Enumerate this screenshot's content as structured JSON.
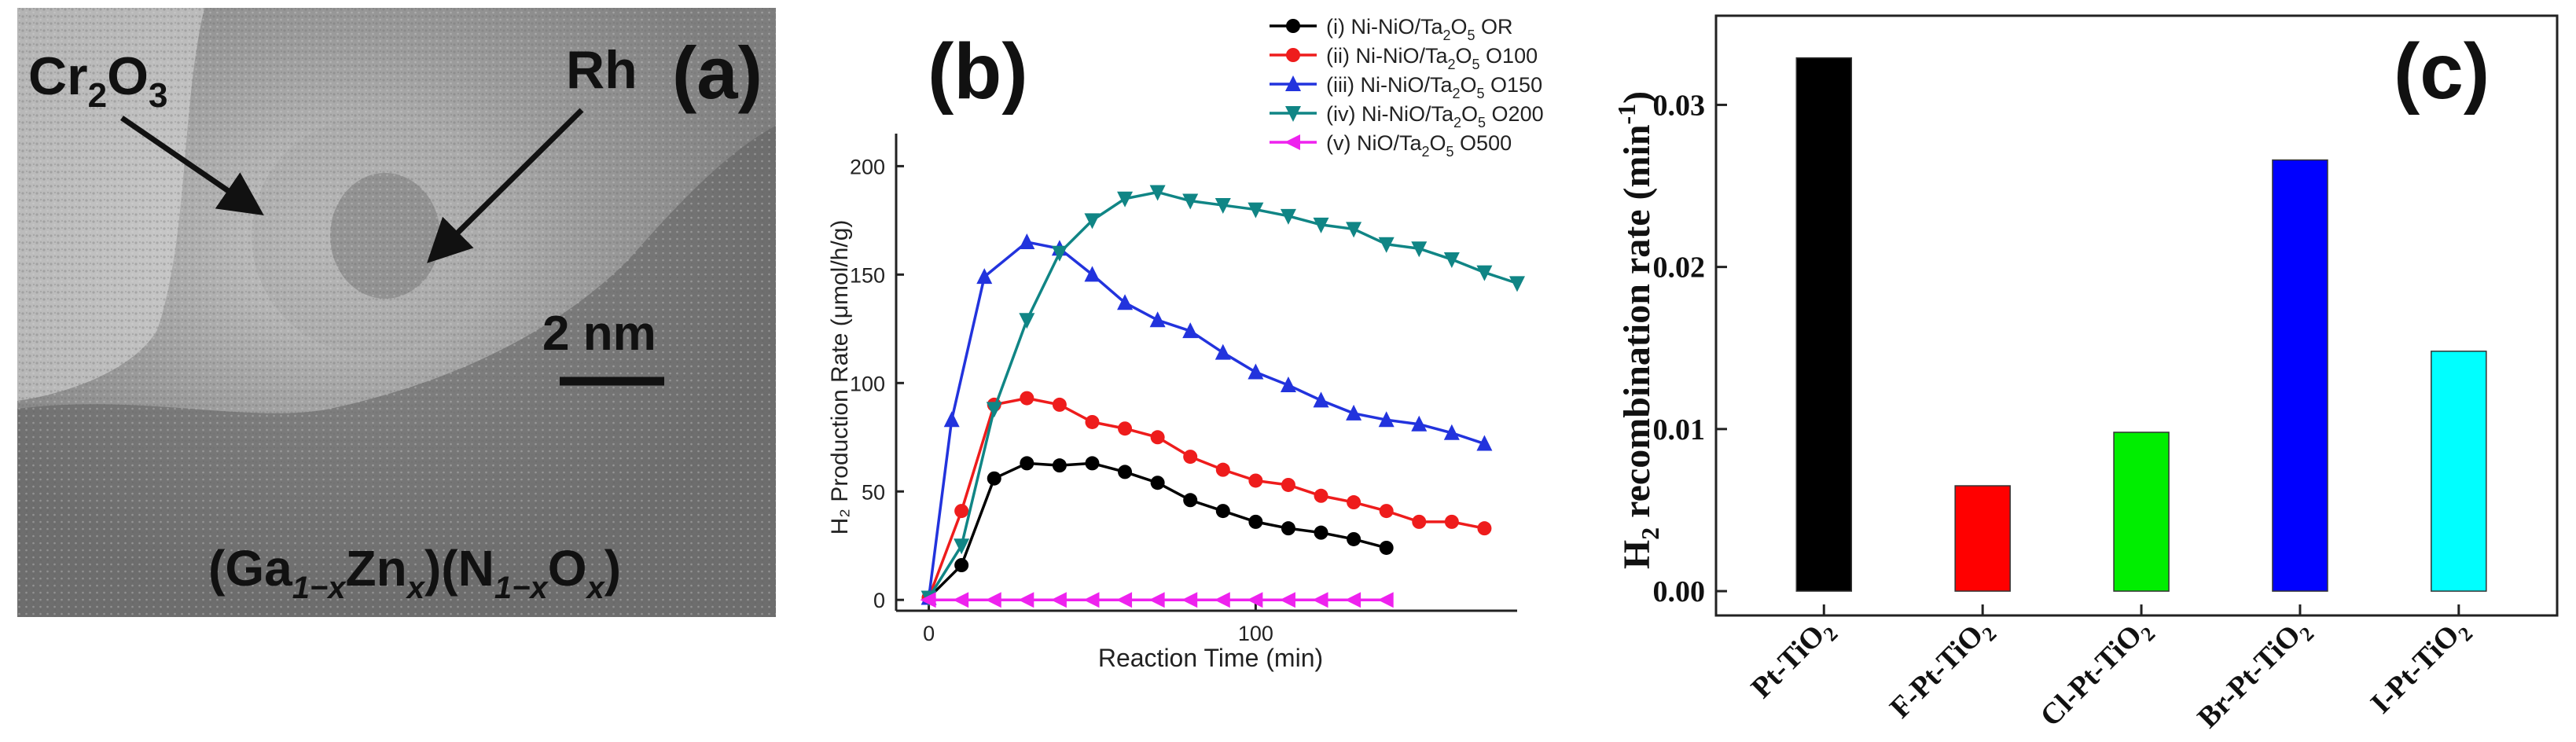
{
  "figure": {
    "panel_a": {
      "label": "(a)",
      "annotation_cr": "Cr",
      "annotation_cr_sub": "2",
      "annotation_cr_tail": "O",
      "annotation_cr_sub2": "3",
      "annotation_rh": "Rh",
      "scale_label": "2 nm",
      "formula_parts": [
        "(Ga",
        "1−x",
        "Zn",
        "x",
        ")(N",
        "1−x",
        "O",
        "x",
        ")"
      ]
    },
    "panel_b": {
      "label": "(b)",
      "ylabel": "H₂ Production Rate (μmol/h/g)",
      "xlabel": "Reaction Time (min)",
      "xticks": [
        "0",
        "100"
      ],
      "yticks": [
        "0",
        "50",
        "100",
        "150",
        "200"
      ],
      "legend": [
        {
          "prefix": "(i) Ni-NiO/Ta",
          "sub": "2",
          "mid": "O",
          "sub2": "5",
          "suffix": " OR"
        },
        {
          "prefix": "(ii) Ni-NiO/Ta",
          "sub": "2",
          "mid": "O",
          "sub2": "5",
          "suffix": " O100"
        },
        {
          "prefix": "(iii) Ni-NiO/Ta",
          "sub": "2",
          "mid": "O",
          "sub2": "5",
          "suffix": " O150"
        },
        {
          "prefix": "(iv) Ni-NiO/Ta",
          "sub": "2",
          "mid": "O",
          "sub2": "5",
          "suffix": " O200"
        },
        {
          "prefix": "(v) NiO/Ta",
          "sub": "2",
          "mid": "O",
          "sub2": "5",
          "suffix": " O500"
        }
      ]
    },
    "panel_c": {
      "label": "(c)",
      "ylabel_main": "H",
      "ylabel_sub": "2",
      "ylabel_rest": " recombination rate (min",
      "ylabel_sup": "-1",
      "ylabel_end": ")",
      "yticks": [
        "0.00",
        "0.01",
        "0.02",
        "0.03"
      ]
    }
  },
  "chart_data": [
    {
      "panel": "b",
      "type": "line",
      "title": "",
      "xlabel": "Reaction Time (min)",
      "ylabel": "H2 Production Rate (μmol/h/g)",
      "xlim": [
        -10,
        180
      ],
      "ylim": [
        -5,
        215
      ],
      "series": [
        {
          "name": "(i) Ni-NiO/Ta2O5 OR",
          "color": "#000000",
          "marker": "circle",
          "x": [
            0,
            10,
            20,
            30,
            40,
            50,
            60,
            70,
            80,
            90,
            100,
            110,
            120,
            130,
            140
          ],
          "y": [
            1,
            16,
            56,
            63,
            62,
            63,
            59,
            54,
            46,
            41,
            36,
            33,
            31,
            28,
            24
          ]
        },
        {
          "name": "(ii) Ni-NiO/Ta2O5 O100",
          "color": "#ee1c1c",
          "marker": "circle",
          "x": [
            0,
            10,
            20,
            30,
            40,
            50,
            60,
            70,
            80,
            90,
            100,
            110,
            120,
            130,
            140,
            150,
            160,
            170
          ],
          "y": [
            1,
            41,
            90,
            93,
            90,
            82,
            79,
            75,
            66,
            60,
            55,
            53,
            48,
            45,
            41,
            36,
            36,
            33
          ]
        },
        {
          "name": "(iii) Ni-NiO/Ta2O5 O150",
          "color": "#2233dd",
          "marker": "triangle-up",
          "x": [
            0,
            7,
            17,
            30,
            40,
            50,
            60,
            70,
            80,
            90,
            100,
            110,
            120,
            130,
            140,
            150,
            160,
            170
          ],
          "y": [
            1,
            83,
            149,
            165,
            162,
            150,
            137,
            129,
            124,
            114,
            105,
            99,
            92,
            86,
            83,
            81,
            77,
            72
          ]
        },
        {
          "name": "(iv) Ni-NiO/Ta2O5 O200",
          "color": "#108585",
          "marker": "triangle-down",
          "x": [
            0,
            10,
            20,
            30,
            40,
            50,
            60,
            70,
            80,
            90,
            100,
            110,
            120,
            130,
            140,
            150,
            160,
            170,
            180
          ],
          "y": [
            1,
            25,
            88,
            129,
            160,
            175,
            185,
            188,
            184,
            182,
            180,
            177,
            173,
            171,
            164,
            162,
            157,
            151,
            146
          ]
        },
        {
          "name": "(v) NiO/Ta2O5 O500",
          "color": "#ee22ee",
          "marker": "triangle-left",
          "x": [
            0,
            10,
            20,
            30,
            40,
            50,
            60,
            70,
            80,
            90,
            100,
            110,
            120,
            130,
            140
          ],
          "y": [
            0,
            0,
            0,
            0,
            0,
            0,
            0,
            0,
            0,
            0,
            0,
            0,
            0,
            0,
            0
          ]
        }
      ]
    },
    {
      "panel": "c",
      "type": "bar",
      "title": "",
      "xlabel": "",
      "ylabel": "H2 recombination rate (min-1)",
      "ylim": [
        -0.0015,
        0.0355
      ],
      "categories": [
        "Pt-TiO2",
        "F-Pt-TiO2",
        "Cl-Pt-TiO2",
        "Br-Pt-TiO2",
        "I-Pt-TiO2"
      ],
      "category_parts": [
        {
          "base": "Pt-TiO",
          "sub": "2"
        },
        {
          "base": "F-Pt-TiO",
          "sub": "2"
        },
        {
          "base": "Cl-Pt-TiO",
          "sub": "2"
        },
        {
          "base": "Br-Pt-TiO",
          "sub": "2"
        },
        {
          "base": "I-Pt-TiO",
          "sub": "2"
        }
      ],
      "values": [
        0.0329,
        0.0065,
        0.0098,
        0.0266,
        0.0148
      ],
      "colors": [
        "#000000",
        "#ff0000",
        "#00ee00",
        "#0000ff",
        "#00ffff"
      ]
    }
  ]
}
